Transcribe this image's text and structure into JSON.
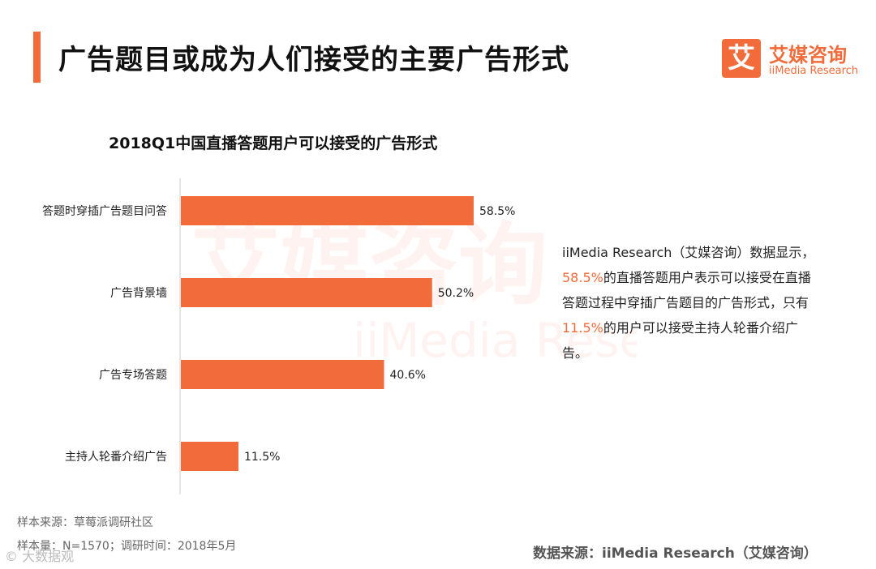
{
  "page": {
    "title": "广告题目或成为人们接受的主要广告形式"
  },
  "logo": {
    "mark": "艾",
    "cn": "艾媒咨询",
    "en": "iiMedia Research"
  },
  "watermark": {
    "cn": "艾媒咨询",
    "en": "iiMedia Research"
  },
  "explanation": {
    "part1": "iiMedia Research（艾媒咨询）数据显示，",
    "hl1": "58.5%",
    "part2": "的直播答题用户表示可以接受在直播答题过程中穿插广告题目的广告形式，只有",
    "hl2": "11.5%",
    "part3": "的用户可以接受主持人轮番介绍广告。"
  },
  "footer": {
    "sample_source": "样本来源：草莓派调研社区",
    "sample_size": "样本量：N=1570；调研时间：2018年5月",
    "data_source": "数据来源：iiMedia Research（艾媒咨询）",
    "credit": "© 大数据观"
  },
  "colors": {
    "accent": "#F26B3A",
    "bar": "#F26B3A"
  },
  "chart_data": {
    "type": "bar",
    "orientation": "horizontal",
    "title": "2018Q1中国直播答题用户可以接受的广告形式",
    "categories": [
      "答题时穿插广告题目问答",
      "广告背景墙",
      "广告专场答题",
      "主持人轮番介绍广告"
    ],
    "values": [
      58.5,
      50.2,
      40.6,
      11.5
    ],
    "value_labels": [
      "58.5%",
      "50.2%",
      "40.6%",
      "11.5%"
    ],
    "xlim": [
      0,
      100
    ],
    "grid": false,
    "legend": "none"
  }
}
